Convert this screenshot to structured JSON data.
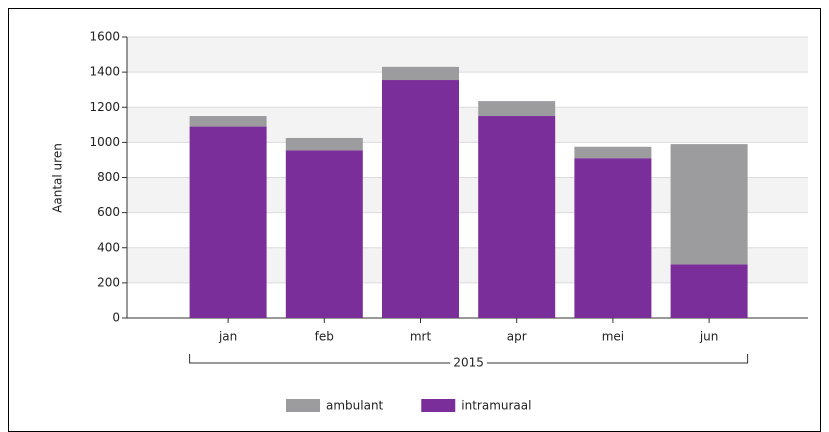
{
  "chart_data": {
    "type": "stacked_bar",
    "y_axis_label": "Aantal uren",
    "categories": [
      "jan",
      "feb",
      "mrt",
      "apr",
      "mei",
      "jun"
    ],
    "category_group": "2015",
    "series": [
      {
        "name": "ambulant",
        "color": "#9c9c9f",
        "values": [
          60,
          70,
          75,
          85,
          65,
          685
        ]
      },
      {
        "name": "intramuraal",
        "color": "#7a2e9a",
        "values": [
          1090,
          955,
          1355,
          1150,
          910,
          305
        ]
      }
    ],
    "ylim": [
      0,
      1600
    ],
    "yticks": [
      0,
      200,
      400,
      600,
      800,
      1000,
      1200,
      1400,
      1600
    ],
    "grid": true,
    "legend": "bottom"
  }
}
